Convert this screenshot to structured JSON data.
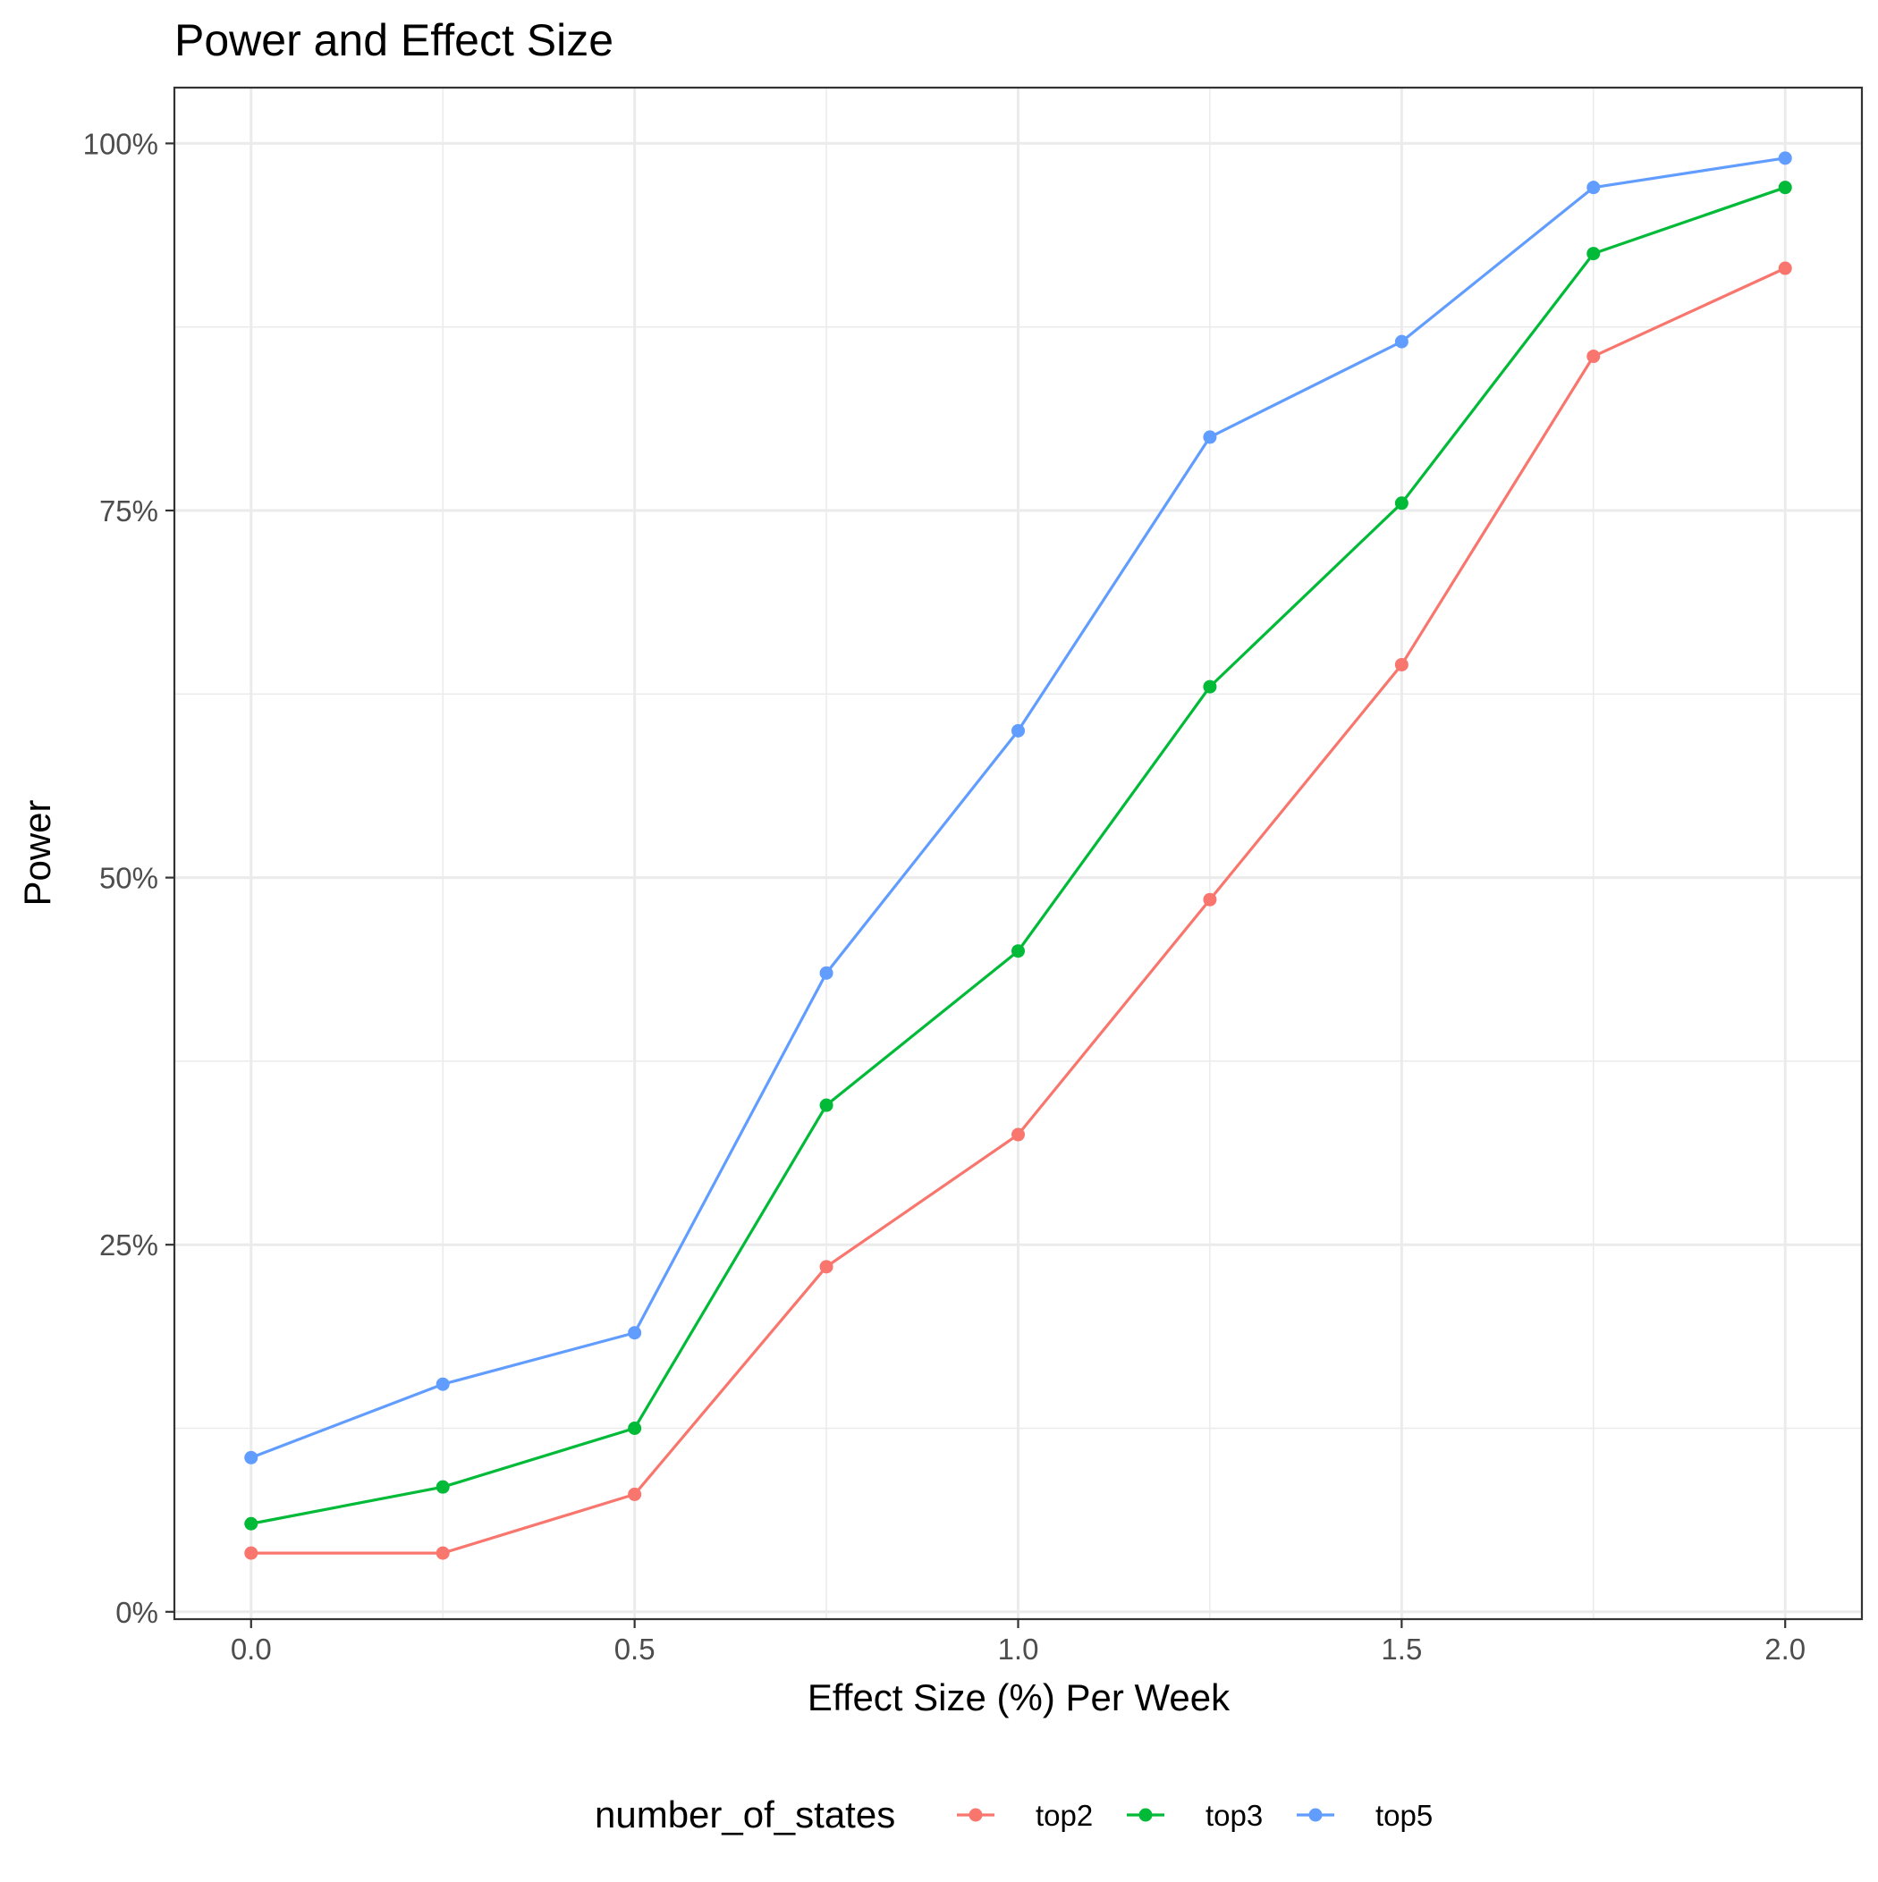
{
  "chart_data": {
    "type": "line",
    "title": "Power and Effect Size",
    "xlabel": "Effect Size (%) Per Week",
    "ylabel": "Power",
    "xlim": [
      -0.1,
      2.1
    ],
    "ylim": [
      -0.005,
      1.038
    ],
    "x_ticks": [
      0.0,
      0.5,
      1.0,
      1.5,
      2.0
    ],
    "x_tick_labels": [
      "0.0",
      "0.5",
      "1.0",
      "1.5",
      "2.0"
    ],
    "y_ticks": [
      0,
      0.25,
      0.5,
      0.75,
      1.0
    ],
    "y_tick_labels": [
      "0%",
      "25%",
      "50%",
      "75%",
      "100%"
    ],
    "grid": true,
    "legend": {
      "title": "number_of_states",
      "position": "bottom"
    },
    "x": [
      0.0,
      0.25,
      0.5,
      0.75,
      1.0,
      1.25,
      1.5,
      1.75,
      2.0
    ],
    "series": [
      {
        "name": "top2",
        "color": "#F8766D",
        "values": [
          0.04,
          0.04,
          0.08,
          0.235,
          0.325,
          0.485,
          0.645,
          0.855,
          0.915
        ]
      },
      {
        "name": "top3",
        "color": "#00BA38",
        "values": [
          0.06,
          0.085,
          0.125,
          0.345,
          0.45,
          0.63,
          0.755,
          0.925,
          0.97
        ]
      },
      {
        "name": "top5",
        "color": "#619CFF",
        "values": [
          0.105,
          0.155,
          0.19,
          0.435,
          0.6,
          0.8,
          0.865,
          0.97,
          0.99
        ]
      }
    ]
  }
}
